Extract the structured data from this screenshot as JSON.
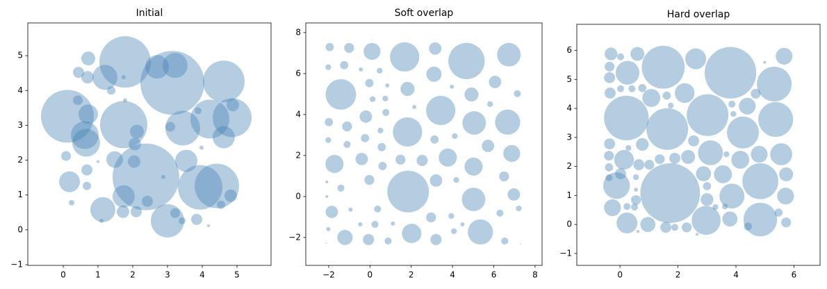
{
  "chart_data": [
    {
      "type": "bubble",
      "title": "Initial",
      "color": "#4682b4",
      "alpha": 0.4,
      "xlim": [
        -1.02,
        5.98
      ],
      "ylim": [
        -1.02,
        5.94
      ],
      "xticks": [
        0,
        1,
        2,
        3,
        4,
        5
      ],
      "yticks": [
        {
          "value": -1,
          "label": "−1"
        },
        0,
        1,
        2,
        3,
        4,
        5
      ],
      "x": [
        0.12,
        1.78,
        3.14,
        3.22,
        2.38,
        1.74,
        4.62,
        4.22,
        4.86,
        3.94,
        4.42,
        3.44,
        3.0,
        0.62,
        0.66,
        1.2,
        1.14,
        0.18,
        2.7,
        3.54,
        0.72,
        4.62,
        1.74,
        1.48,
        0.72,
        0.7,
        0.44,
        2.04,
        2.12,
        2.06,
        4.82,
        4.88,
        0.68,
        0.42,
        1.72,
        2.1,
        2.42,
        3.84,
        3.22,
        3.08,
        1.38,
        0.08,
        0.68,
        0.24,
        3.88,
        4.54,
        3.42,
        1.1,
        1.74,
        2.88,
        3.98,
        4.18,
        1.78,
        1.0
      ],
      "values": [
        3.26,
        4.82,
        4.22,
        4.72,
        1.52,
        3.02,
        4.26,
        3.18,
        3.22,
        1.22,
        1.26,
        2.92,
        0.26,
        2.72,
        2.5,
        4.38,
        0.58,
        1.38,
        4.68,
        1.98,
        3.32,
        2.66,
        0.96,
        2.02,
        4.92,
        4.38,
        4.52,
        1.96,
        2.82,
        2.46,
        0.98,
        3.58,
        1.72,
        3.72,
        0.52,
        0.52,
        0.82,
        0.3,
        0.48,
        2.96,
        4.0,
        2.12,
        1.26,
        0.78,
        3.42,
        0.72,
        0.26,
        0.26,
        4.38,
        1.52,
        2.36,
        0.12,
        3.72,
        1.96
      ],
      "sizes": [
        0.76,
        0.74,
        0.92,
        0.36,
        0.96,
        0.68,
        0.6,
        0.56,
        0.56,
        0.64,
        0.64,
        0.5,
        0.48,
        0.4,
        0.4,
        0.36,
        0.36,
        0.3,
        0.34,
        0.32,
        0.28,
        0.32,
        0.32,
        0.24,
        0.2,
        0.18,
        0.16,
        0.18,
        0.2,
        0.18,
        0.18,
        0.18,
        0.16,
        0.14,
        0.18,
        0.16,
        0.16,
        0.16,
        0.14,
        0.14,
        0.12,
        0.14,
        0.12,
        0.08,
        0.1,
        0.12,
        0.1,
        0.06,
        0.06,
        0.06,
        0.06,
        0.04,
        0.06,
        0.04
      ]
    },
    {
      "type": "bubble",
      "title": "Soft overlap",
      "color": "#4682b4",
      "alpha": 0.4,
      "xlim": [
        -3.11,
        8.34
      ],
      "ylim": [
        -3.36,
        8.47
      ],
      "xticks": [
        {
          "value": -2,
          "label": "−2"
        },
        0,
        2,
        4,
        6,
        8
      ],
      "yticks": [
        {
          "value": -2,
          "label": "−2"
        },
        0,
        2,
        4,
        6,
        8
      ],
      "x": [
        -1.95,
        -1.01,
        0.1,
        1.68,
        3.16,
        4.68,
        6.73,
        -2.02,
        -1.25,
        -0.44,
        0.47,
        3.1,
        6.06,
        -1.41,
        -0.03,
        0.84,
        1.82,
        3.97,
        4.92,
        7.14,
        0.13,
        0.74,
        -1.99,
        -1.11,
        -0.2,
        0.77,
        3.43,
        2.15,
        5.82,
        5.05,
        6.67,
        1.82,
        0.51,
        -0.24,
        -2.02,
        -1.11,
        0.57,
        3.13,
        4.11,
        5.72,
        6.87,
        -1.72,
        -0.4,
        0.61,
        1.48,
        2.53,
        3.77,
        5.02,
        6.5,
        -2.09,
        -1.41,
        -0.03,
        1.85,
        3.2,
        4.18,
        6.97,
        -2.09,
        5.02,
        -1.85,
        -0.94,
        0.37,
        2.96,
        3.94,
        6.3,
        7.21,
        -2.02,
        -0.47,
        0.24,
        1.11,
        4.48,
        -1.21,
        -0.07,
        0.88,
        2.02,
        3.2,
        4.07,
        5.35,
        6.53,
        -2.12,
        7.31
      ],
      "values": [
        7.29,
        7.25,
        7.08,
        6.81,
        7.22,
        6.61,
        6.92,
        6.31,
        6.41,
        6.2,
        6.14,
        5.97,
        5.59,
        4.98,
        5.53,
        5.42,
        5.25,
        5.36,
        4.98,
        5.02,
        4.75,
        4.78,
        3.63,
        3.42,
        3.9,
        4.1,
        4.2,
        4.37,
        4.51,
        3.59,
        3.63,
        3.15,
        3.22,
        2.85,
        2.75,
        2.54,
        2.41,
        2.78,
        2.95,
        2.47,
        2.1,
        1.59,
        1.83,
        1.49,
        1.8,
        1.76,
        1.9,
        1.46,
        0.98,
        0.71,
        0.41,
        0.81,
        0.24,
        0.78,
        0.81,
        0.1,
        0.0,
        -0.14,
        -0.75,
        -0.64,
        -0.61,
        -1.02,
        -0.95,
        -0.81,
        -0.58,
        -1.59,
        -1.36,
        -1.36,
        -1.32,
        -1.36,
        -2.0,
        -2.1,
        -2.17,
        -1.8,
        -2.1,
        -1.69,
        -1.73,
        -2.17,
        -2.27,
        -2.31
      ],
      "sizes": [
        0.2,
        0.24,
        0.41,
        0.71,
        0.3,
        0.88,
        0.57,
        0.14,
        0.2,
        0.1,
        0.14,
        0.37,
        0.3,
        0.74,
        0.2,
        0.1,
        0.34,
        0.1,
        0.34,
        0.17,
        0.14,
        0.14,
        0.2,
        0.24,
        0.3,
        0.17,
        0.71,
        0.1,
        0.14,
        0.57,
        0.61,
        0.71,
        0.14,
        0.2,
        0.14,
        0.17,
        0.2,
        0.2,
        0.14,
        0.3,
        0.41,
        0.44,
        0.3,
        0.2,
        0.24,
        0.27,
        0.44,
        0.44,
        0.24,
        0.07,
        0.17,
        0.24,
        1.01,
        0.3,
        0.14,
        0.3,
        0.07,
        0.57,
        0.3,
        0.1,
        0.17,
        0.24,
        0.14,
        0.17,
        0.14,
        0.1,
        0.1,
        0.17,
        0.1,
        0.1,
        0.37,
        0.27,
        0.17,
        0.47,
        0.27,
        0.14,
        0.61,
        0.17,
        0.03,
        0.03
      ]
    },
    {
      "type": "bubble",
      "title": "Hard overlap",
      "color": "#4682b4",
      "alpha": 0.4,
      "xlim": [
        -1.49,
        6.9
      ],
      "ylim": [
        -1.41,
        6.9
      ],
      "xticks": [
        0,
        2,
        4,
        6
      ],
      "yticks": [
        {
          "value": -1,
          "label": "−1"
        },
        0,
        1,
        2,
        3,
        4,
        5,
        6
      ],
      "x": [
        -0.31,
        0.02,
        0.6,
        0.26,
        -0.36,
        -0.36,
        1.49,
        2.61,
        3.81,
        5.66,
        5.32,
        4.99,
        -0.34,
        0.02,
        0.41,
        0.77,
        1.08,
        2.23,
        4.68,
        1.61,
        1.75,
        0.22,
        1.63,
        3.02,
        4.39,
        3.86,
        3.91,
        4.24,
        5.37,
        -0.36,
        -0.38,
        0.29,
        0.77,
        0.14,
        0.65,
        1.01,
        1.37,
        1.89,
        2.35,
        2.54,
        3.12,
        3.67,
        4.15,
        4.8,
        5.56,
        -0.38,
        -0.38,
        0.02,
        0.55,
        -0.12,
        1.73,
        2.88,
        3.55,
        4.84,
        5.73,
        0.55,
        3.0,
        3.86,
        3.0,
        5.71,
        0.55,
        0.24,
        -0.26,
        0.5,
        3.29,
        3.62,
        5.47,
        0.24,
        0.96,
        1.58,
        1.89,
        2.3,
        2.97,
        3.79,
        4.41,
        4.84,
        5.73,
        0.62,
        2.66
      ],
      "values": [
        5.88,
        5.78,
        5.88,
        5.23,
        5.44,
        5.06,
        5.42,
        5.71,
        5.23,
        5.8,
        4.84,
        5.59,
        4.53,
        4.68,
        4.68,
        4.7,
        4.36,
        4.53,
        4.51,
        4.44,
        4.1,
        3.67,
        3.29,
        3.77,
        4.08,
        4.15,
        3.81,
        3.17,
        3.62,
        2.78,
        2.37,
        2.64,
        2.76,
        2.23,
        2.06,
        2.06,
        2.25,
        2.28,
        2.33,
        2.88,
        2.47,
        2.42,
        2.23,
        2.42,
        2.42,
        1.97,
        1.61,
        1.75,
        1.63,
        1.34,
        1.08,
        1.75,
        1.73,
        1.49,
        1.73,
        1.2,
        1.32,
        0.98,
        0.86,
        0.98,
        0.84,
        0.62,
        0.58,
        0.6,
        0.6,
        0.62,
        0.41,
        0.05,
        0.0,
        -0.1,
        -0.1,
        -0.1,
        0.14,
        0.19,
        -0.07,
        0.17,
        0.07,
        -0.24,
        -0.34
      ],
      "sizes": [
        0.22,
        0.12,
        0.24,
        0.41,
        0.17,
        0.19,
        0.74,
        0.36,
        0.89,
        0.29,
        0.6,
        0.05,
        0.19,
        0.12,
        0.12,
        0.14,
        0.31,
        0.34,
        0.17,
        0.14,
        0.1,
        0.77,
        0.72,
        0.72,
        0.29,
        0.12,
        0.1,
        0.55,
        0.6,
        0.19,
        0.17,
        0.1,
        0.22,
        0.34,
        0.19,
        0.17,
        0.17,
        0.19,
        0.24,
        0.19,
        0.43,
        0.1,
        0.31,
        0.29,
        0.38,
        0.14,
        0.12,
        0.19,
        0.1,
        0.46,
        1.03,
        0.26,
        0.31,
        0.62,
        0.24,
        0.07,
        0.14,
        0.43,
        0.22,
        0.29,
        0.17,
        0.12,
        0.29,
        0.12,
        0.1,
        0.1,
        0.14,
        0.36,
        0.26,
        0.19,
        0.12,
        0.17,
        0.5,
        0.26,
        0.14,
        0.58,
        0.17,
        0.05,
        0.05
      ]
    }
  ]
}
